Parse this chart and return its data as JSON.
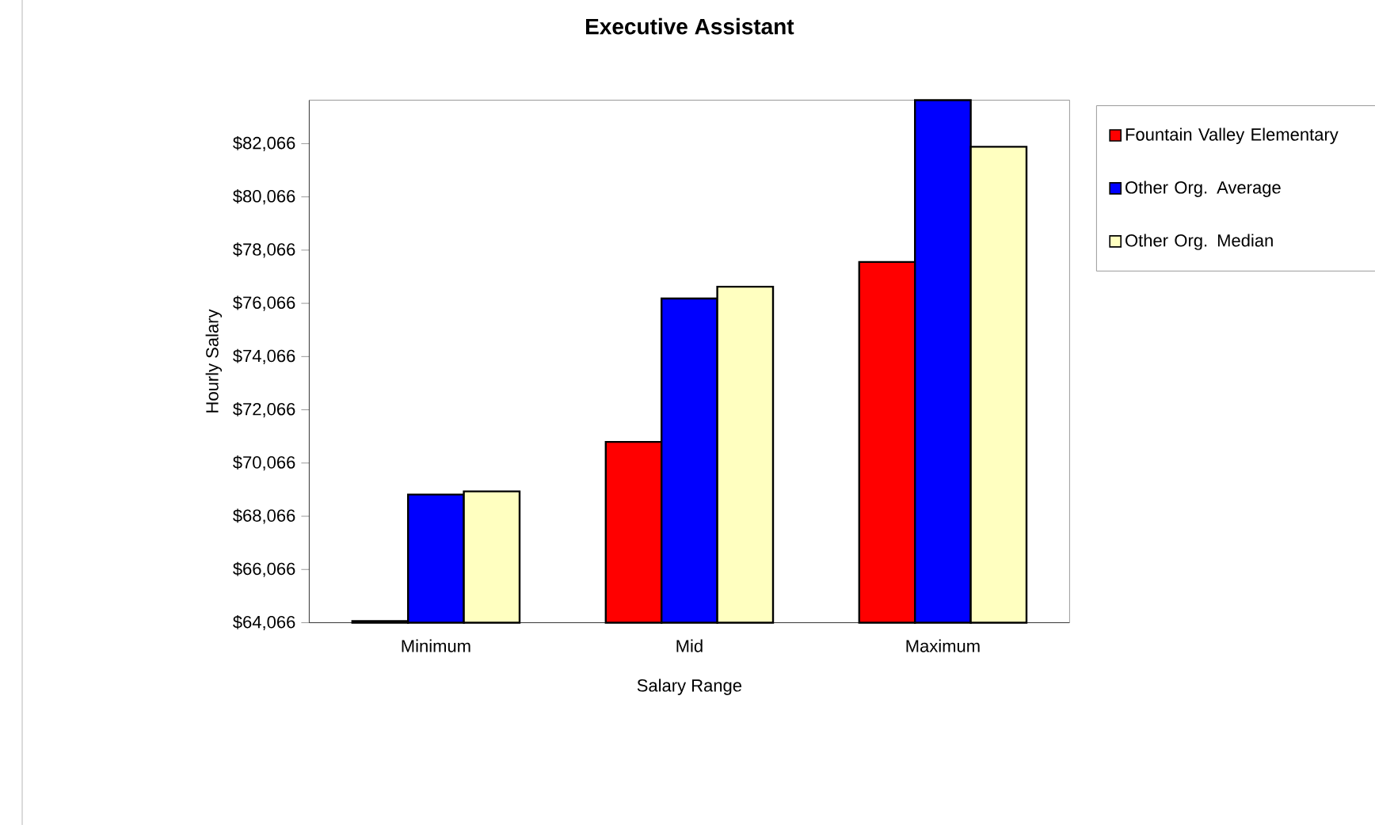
{
  "chart_data": {
    "type": "bar",
    "title": "Executive Assistant",
    "xlabel": "Salary Range",
    "ylabel": "Hourly Salary",
    "categories": [
      "Minimum",
      "Mid",
      "Maximum"
    ],
    "series": [
      {
        "name": "Fountain Valley Elementary",
        "color": "#ff0000",
        "values": [
          64130,
          70860,
          77620
        ]
      },
      {
        "name": "Other Org. Average",
        "color": "#0000ff",
        "values": [
          68880,
          76250,
          83700
        ]
      },
      {
        "name": "Other Org. Median",
        "color": "#ffffc0",
        "values": [
          69000,
          76690,
          81950
        ]
      }
    ],
    "ylim": [
      64066,
      83700
    ],
    "yticks": [
      {
        "value": 64066,
        "label": "$64,066"
      },
      {
        "value": 66066,
        "label": "$66,066"
      },
      {
        "value": 68066,
        "label": "$68,066"
      },
      {
        "value": 70066,
        "label": "$70,066"
      },
      {
        "value": 72066,
        "label": "$72,066"
      },
      {
        "value": 74066,
        "label": "$74,066"
      },
      {
        "value": 76066,
        "label": "$76,066"
      },
      {
        "value": 78066,
        "label": "$78,066"
      },
      {
        "value": 80066,
        "label": "$80,066"
      },
      {
        "value": 82066,
        "label": "$82,066"
      }
    ],
    "grid": false,
    "legend": "right"
  }
}
